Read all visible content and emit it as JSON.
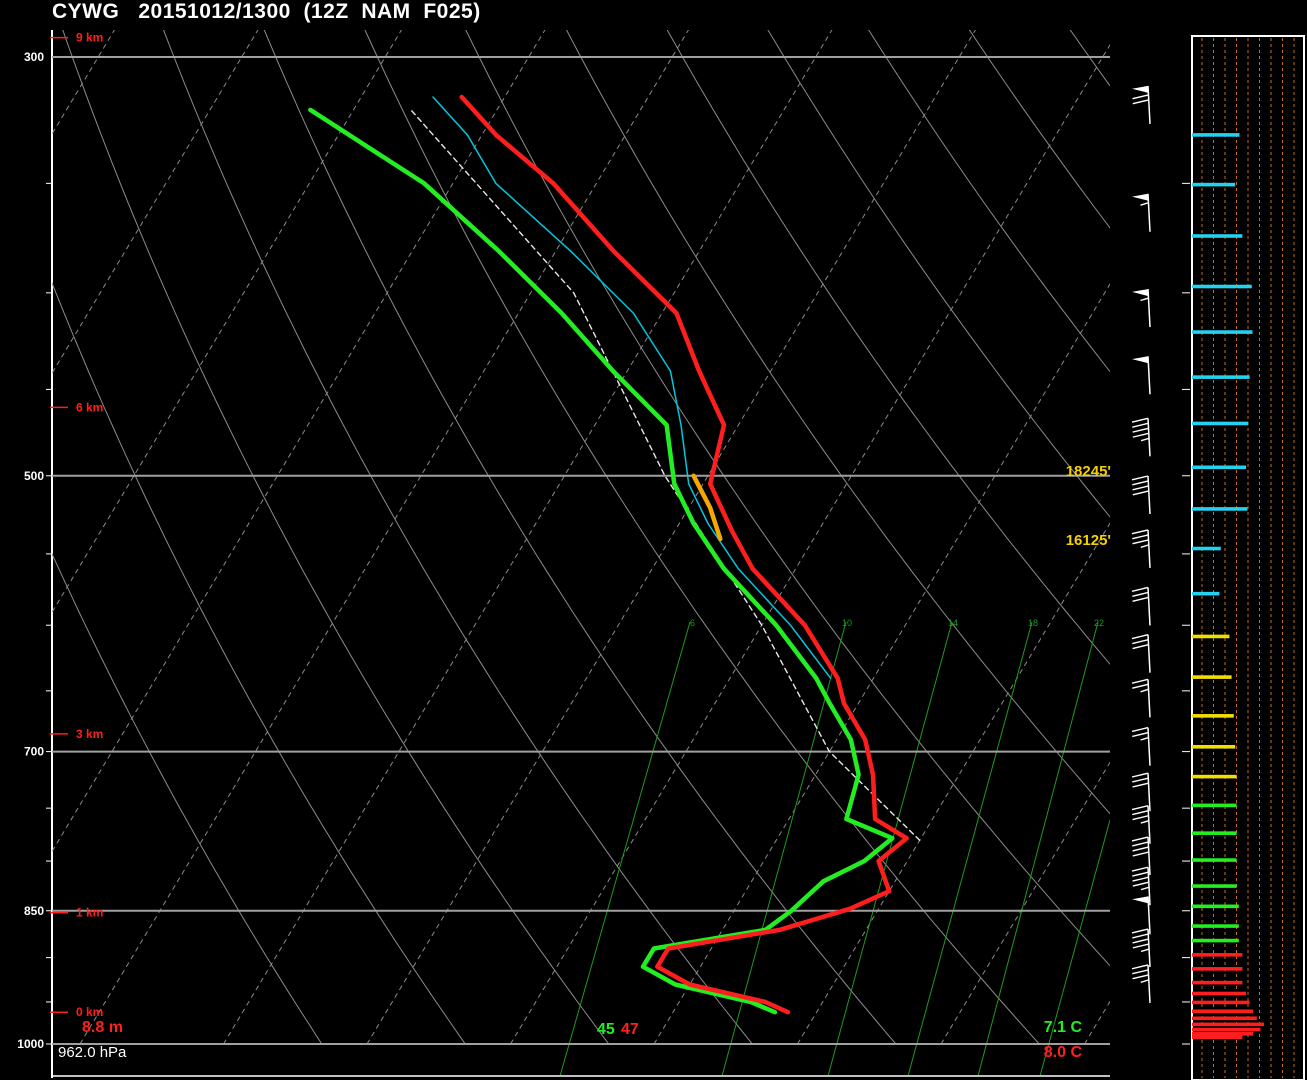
{
  "header": {
    "title": "CYWG   20151012/1300  (12Z  NAM  F025)"
  },
  "colors": {
    "temperature": "#ff1e1e",
    "dewpoint": "#22ee22",
    "wetbulb": "#00c8e0",
    "parcel": "#e8e8e8",
    "lcl_segment": "#f5a800",
    "mixing_ratio": "#1f9a1f",
    "isobar": "#a0a0a0",
    "isotherm": "#8a8a8a",
    "height_label": "#ff1e1e",
    "level_label": "#f5d000"
  },
  "chart_data": {
    "type": "line",
    "title": "CYWG   20151012/1300  (12Z  NAM  F025)",
    "y_axis": {
      "scale": "log",
      "ylim": [
        1000,
        300
      ],
      "ticks": [
        300,
        500,
        700,
        850,
        1000
      ]
    },
    "height_labels": [
      {
        "label": "9 km",
        "p": 293
      },
      {
        "label": "6 km",
        "p": 460
      },
      {
        "label": "3 km",
        "p": 685
      },
      {
        "label": "1 km",
        "p": 852
      },
      {
        "label": "0 km",
        "p": 962
      }
    ],
    "mixing_ratio_labels": [
      "6",
      "10",
      "14",
      "18",
      "22"
    ],
    "series": [
      {
        "name": "temperature",
        "points": [
          {
            "p": 962,
            "t": 8.0
          },
          {
            "p": 950,
            "t": 6
          },
          {
            "p": 930,
            "t": 0
          },
          {
            "p": 910,
            "t": -3
          },
          {
            "p": 890,
            "t": -3
          },
          {
            "p": 870,
            "t": 4
          },
          {
            "p": 848,
            "t": 8
          },
          {
            "p": 830,
            "t": 10
          },
          {
            "p": 800,
            "t": 8
          },
          {
            "p": 778,
            "t": 9
          },
          {
            "p": 760,
            "t": 6
          },
          {
            "p": 720,
            "t": 4
          },
          {
            "p": 690,
            "t": 2
          },
          {
            "p": 660,
            "t": -1
          },
          {
            "p": 640,
            "t": -2.5
          },
          {
            "p": 600,
            "t": -7
          },
          {
            "p": 560,
            "t": -13
          },
          {
            "p": 535,
            "t": -16
          },
          {
            "p": 505,
            "t": -19.5
          },
          {
            "p": 470,
            "t": -21
          },
          {
            "p": 440,
            "t": -25
          },
          {
            "p": 410,
            "t": -29
          },
          {
            "p": 380,
            "t": -36
          },
          {
            "p": 350,
            "t": -43
          },
          {
            "p": 330,
            "t": -49
          },
          {
            "p": 315,
            "t": -53
          }
        ]
      },
      {
        "name": "dewpoint",
        "points": [
          {
            "p": 962,
            "t": 7.1
          },
          {
            "p": 950,
            "t": 5
          },
          {
            "p": 930,
            "t": -1
          },
          {
            "p": 910,
            "t": -4
          },
          {
            "p": 890,
            "t": -4
          },
          {
            "p": 870,
            "t": 3
          },
          {
            "p": 850,
            "t": 4
          },
          {
            "p": 820,
            "t": 5
          },
          {
            "p": 800,
            "t": 7
          },
          {
            "p": 778,
            "t": 8
          },
          {
            "p": 760,
            "t": 4
          },
          {
            "p": 720,
            "t": 3
          },
          {
            "p": 690,
            "t": 1
          },
          {
            "p": 660,
            "t": -2
          },
          {
            "p": 640,
            "t": -4
          },
          {
            "p": 600,
            "t": -9
          },
          {
            "p": 560,
            "t": -15
          },
          {
            "p": 530,
            "t": -19
          },
          {
            "p": 505,
            "t": -22
          },
          {
            "p": 470,
            "t": -25
          },
          {
            "p": 440,
            "t": -31
          },
          {
            "p": 410,
            "t": -37
          },
          {
            "p": 380,
            "t": -44
          },
          {
            "p": 350,
            "t": -52
          },
          {
            "p": 320,
            "t": -63
          }
        ]
      },
      {
        "name": "wetbulb",
        "points": [
          {
            "p": 640,
            "t": -3
          },
          {
            "p": 600,
            "t": -8
          },
          {
            "p": 560,
            "t": -14
          },
          {
            "p": 530,
            "t": -18
          },
          {
            "p": 505,
            "t": -21
          },
          {
            "p": 470,
            "t": -24
          },
          {
            "p": 440,
            "t": -27
          },
          {
            "p": 410,
            "t": -32
          },
          {
            "p": 380,
            "t": -39
          },
          {
            "p": 350,
            "t": -47
          },
          {
            "p": 330,
            "t": -51
          },
          {
            "p": 315,
            "t": -55
          }
        ]
      },
      {
        "name": "parcel",
        "points": [
          {
            "p": 780,
            "t": 10
          },
          {
            "p": 700,
            "t": 0
          },
          {
            "p": 600,
            "t": -10
          },
          {
            "p": 500,
            "t": -23
          },
          {
            "p": 400,
            "t": -37
          },
          {
            "p": 320,
            "t": -56
          }
        ]
      },
      {
        "name": "lcl-segment",
        "points": [
          {
            "p": 540,
            "t": -16.5
          },
          {
            "p": 520,
            "t": -18.5
          },
          {
            "p": 500,
            "t": -21
          }
        ]
      }
    ],
    "level_labels": [
      {
        "label": "18245'",
        "p": 498
      },
      {
        "label": "16125'",
        "p": 553
      }
    ],
    "surface": {
      "dewpoint_label": "7.1 C",
      "temperature_label": "8.0 C",
      "pressure_label": "962.0 hPa",
      "height_label": "8.8 m",
      "dewpoint_f": "45",
      "temperature_f": "47"
    },
    "wind_barbs": [
      {
        "p": 320,
        "kt": 70
      },
      {
        "p": 365,
        "kt": 55
      },
      {
        "p": 410,
        "kt": 55
      },
      {
        "p": 445,
        "kt": 50
      },
      {
        "p": 480,
        "kt": 45
      },
      {
        "p": 515,
        "kt": 40
      },
      {
        "p": 550,
        "kt": 35
      },
      {
        "p": 590,
        "kt": 30
      },
      {
        "p": 625,
        "kt": 30
      },
      {
        "p": 660,
        "kt": 25
      },
      {
        "p": 700,
        "kt": 25
      },
      {
        "p": 740,
        "kt": 30
      },
      {
        "p": 770,
        "kt": 35
      },
      {
        "p": 800,
        "kt": 40
      },
      {
        "p": 830,
        "kt": 45
      },
      {
        "p": 860,
        "kt": 50
      },
      {
        "p": 895,
        "kt": 45
      },
      {
        "p": 935,
        "kt": 35
      }
    ],
    "profile_bars": [
      {
        "p": 320,
        "v": 0.66,
        "c": "cyan"
      },
      {
        "p": 340,
        "v": 0.6,
        "c": "cyan"
      },
      {
        "p": 362,
        "v": 0.7,
        "c": "cyan"
      },
      {
        "p": 385,
        "v": 0.83,
        "c": "cyan"
      },
      {
        "p": 407,
        "v": 0.84,
        "c": "cyan"
      },
      {
        "p": 430,
        "v": 0.8,
        "c": "cyan"
      },
      {
        "p": 455,
        "v": 0.78,
        "c": "cyan"
      },
      {
        "p": 480,
        "v": 0.75,
        "c": "cyan"
      },
      {
        "p": 505,
        "v": 0.77,
        "c": "cyan"
      },
      {
        "p": 530,
        "v": 0.4,
        "c": "cyan"
      },
      {
        "p": 560,
        "v": 0.38,
        "c": "cyan"
      },
      {
        "p": 590,
        "v": 0.52,
        "c": "yellow"
      },
      {
        "p": 620,
        "v": 0.55,
        "c": "yellow"
      },
      {
        "p": 650,
        "v": 0.58,
        "c": "yellow"
      },
      {
        "p": 675,
        "v": 0.6,
        "c": "yellow"
      },
      {
        "p": 700,
        "v": 0.62,
        "c": "yellow"
      },
      {
        "p": 725,
        "v": 0.62,
        "c": "green"
      },
      {
        "p": 750,
        "v": 0.62,
        "c": "green"
      },
      {
        "p": 775,
        "v": 0.62,
        "c": "green"
      },
      {
        "p": 800,
        "v": 0.62,
        "c": "green"
      },
      {
        "p": 820,
        "v": 0.65,
        "c": "green"
      },
      {
        "p": 840,
        "v": 0.65,
        "c": "green"
      },
      {
        "p": 855,
        "v": 0.65,
        "c": "green"
      },
      {
        "p": 870,
        "v": 0.7,
        "c": "red"
      },
      {
        "p": 885,
        "v": 0.7,
        "c": "red"
      },
      {
        "p": 900,
        "v": 0.7,
        "c": "red"
      },
      {
        "p": 912,
        "v": 0.75,
        "c": "red"
      },
      {
        "p": 922,
        "v": 0.8,
        "c": "red"
      },
      {
        "p": 932,
        "v": 0.85,
        "c": "red"
      },
      {
        "p": 940,
        "v": 0.9,
        "c": "red"
      },
      {
        "p": 947,
        "v": 1.0,
        "c": "red"
      },
      {
        "p": 953,
        "v": 0.95,
        "c": "red"
      },
      {
        "p": 958,
        "v": 0.85,
        "c": "red"
      },
      {
        "p": 962,
        "v": 0.7,
        "c": "red"
      }
    ]
  }
}
